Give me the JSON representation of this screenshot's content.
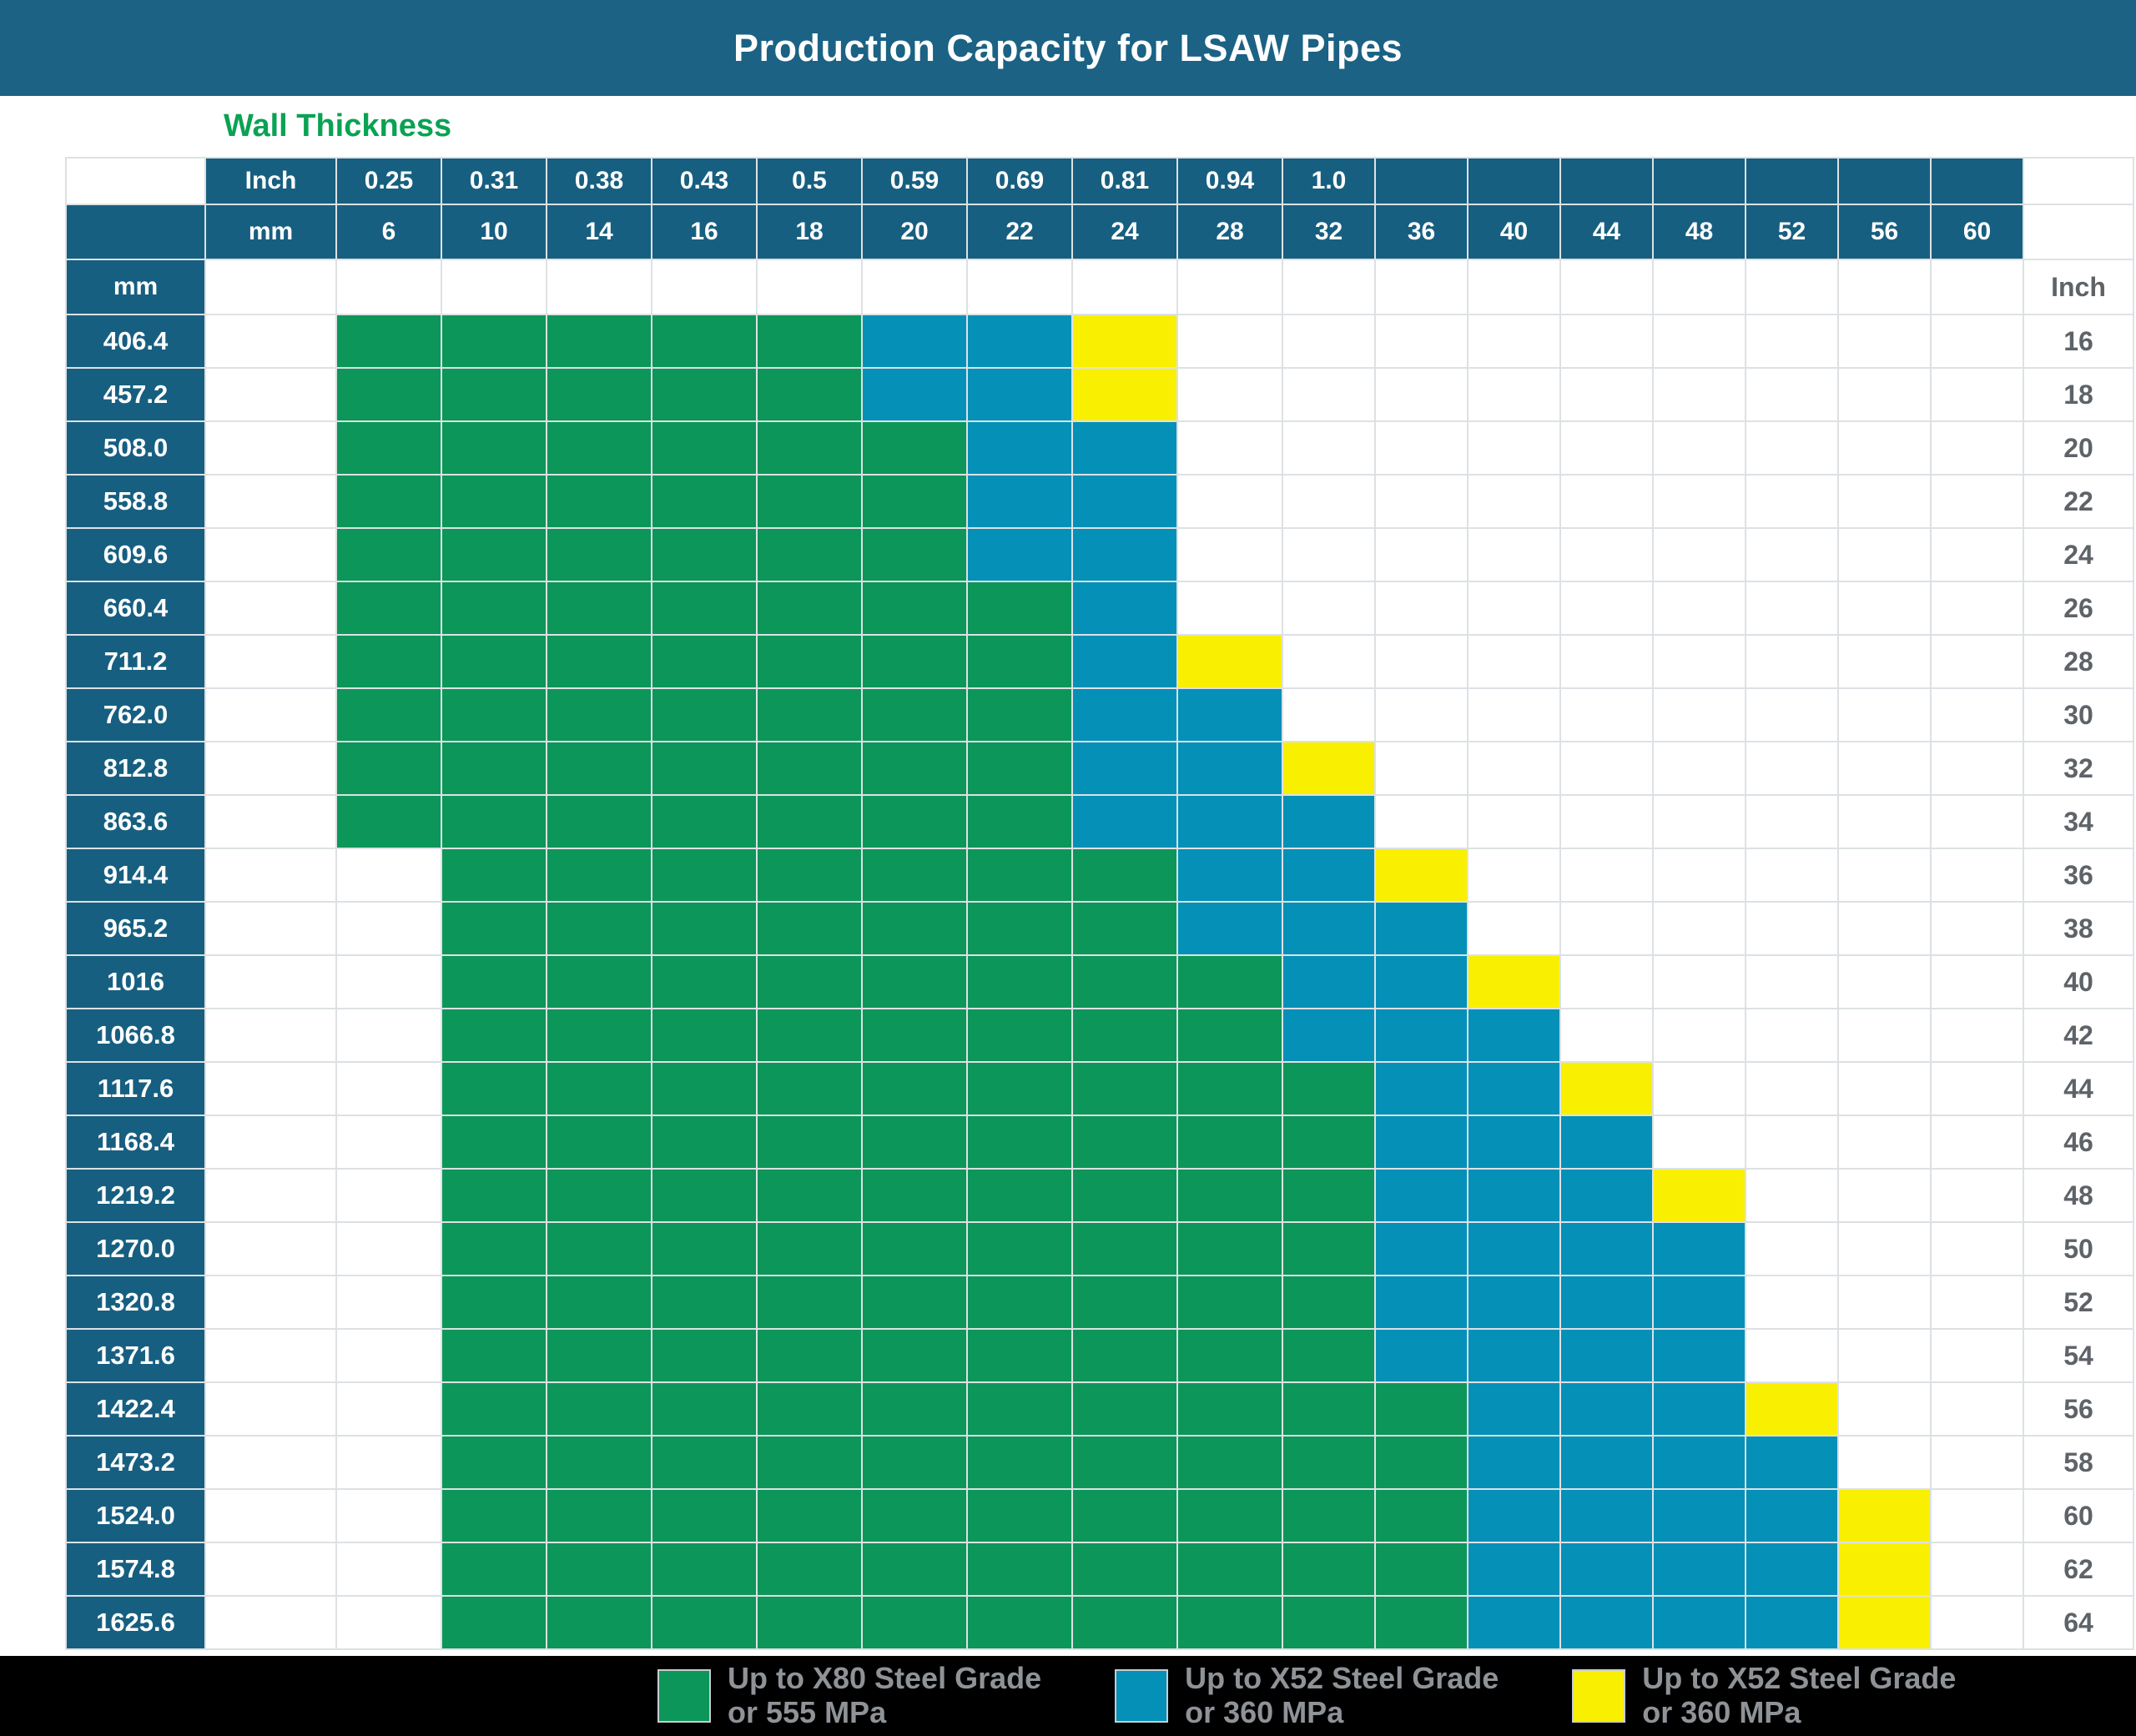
{
  "title": "Production Capacity for LSAW Pipes",
  "wall_thickness_label": "Wall Thickness",
  "units": {
    "inch": "Inch",
    "mm": "mm"
  },
  "wall_thickness_columns": {
    "inch": [
      "0.25",
      "0.31",
      "0.38",
      "0.43",
      "0.5",
      "0.59",
      "0.69",
      "0.81",
      "0.94",
      "1.0"
    ],
    "mm": [
      "6",
      "10",
      "14",
      "16",
      "18",
      "20",
      "22",
      "24",
      "28",
      "32",
      "36",
      "40",
      "44",
      "48",
      "52",
      "56",
      "60"
    ]
  },
  "rows": [
    {
      "mm": "406.4",
      "inch": "16",
      "cells": "GGGGGBBY........."
    },
    {
      "mm": "457.2",
      "inch": "18",
      "cells": "GGGGGBBY........."
    },
    {
      "mm": "508.0",
      "inch": "20",
      "cells": "GGGGGGBB........."
    },
    {
      "mm": "558.8",
      "inch": "22",
      "cells": "GGGGGGBB........."
    },
    {
      "mm": "609.6",
      "inch": "24",
      "cells": "GGGGGGBB........."
    },
    {
      "mm": "660.4",
      "inch": "26",
      "cells": "GGGGGGGB........."
    },
    {
      "mm": "711.2",
      "inch": "28",
      "cells": "GGGGGGGBY........"
    },
    {
      "mm": "762.0",
      "inch": "30",
      "cells": "GGGGGGGBB........"
    },
    {
      "mm": "812.8",
      "inch": "32",
      "cells": "GGGGGGGBBY......."
    },
    {
      "mm": "863.6",
      "inch": "34",
      "cells": "GGGGGGGBBB......."
    },
    {
      "mm": "914.4",
      "inch": "36",
      "cells": ".GGGGGGGBBY......"
    },
    {
      "mm": "965.2",
      "inch": "38",
      "cells": ".GGGGGGGBBB......"
    },
    {
      "mm": "1016",
      "inch": "40",
      "cells": ".GGGGGGGGBBY....."
    },
    {
      "mm": "1066.8",
      "inch": "42",
      "cells": ".GGGGGGGGBBB....."
    },
    {
      "mm": "1117.6",
      "inch": "44",
      "cells": ".GGGGGGGGGBBY...."
    },
    {
      "mm": "1168.4",
      "inch": "46",
      "cells": ".GGGGGGGGGBBB...."
    },
    {
      "mm": "1219.2",
      "inch": "48",
      "cells": ".GGGGGGGGGBBBY..."
    },
    {
      "mm": "1270.0",
      "inch": "50",
      "cells": ".GGGGGGGGGBBBB..."
    },
    {
      "mm": "1320.8",
      "inch": "52",
      "cells": ".GGGGGGGGGBBBB..."
    },
    {
      "mm": "1371.6",
      "inch": "54",
      "cells": ".GGGGGGGGGBBBB..."
    },
    {
      "mm": "1422.4",
      "inch": "56",
      "cells": ".GGGGGGGGGGBBBY.."
    },
    {
      "mm": "1473.2",
      "inch": "58",
      "cells": ".GGGGGGGGGGBBBB.."
    },
    {
      "mm": "1524.0",
      "inch": "60",
      "cells": ".GGGGGGGGGGBBBBY."
    },
    {
      "mm": "1574.8",
      "inch": "62",
      "cells": ".GGGGGGGGGGBBBBY."
    },
    {
      "mm": "1625.6",
      "inch": "64",
      "cells": ".GGGGGGGGGGBBBBY."
    }
  ],
  "legend": [
    {
      "key": "G",
      "color": "#0D9659",
      "line1": "Up to X80 Steel Grade",
      "line2": "or 555 MPa"
    },
    {
      "key": "B",
      "color": "#0590B8",
      "line1": "Up to X52 Steel Grade",
      "line2": "or 360 MPa"
    },
    {
      "key": "Y",
      "color": "#F8F000",
      "line1": "Up to X52 Steel Grade",
      "line2": "or 360 MPa"
    }
  ],
  "colors": {
    "green_cell": "#0D9659",
    "blue_cell": "#0590B8",
    "yellow_cell": "#F8F000",
    "header_cell": "#175F80",
    "title_bar": "#1B6284",
    "wall_thickness_text": "#0AA253",
    "inch_label_text": "#5E6368",
    "legend_text": "#8F9397",
    "legend_bar": "#000000"
  },
  "chart_data": {
    "type": "heatmap",
    "title": "Production Capacity for LSAW Pipes",
    "x_axis_label": "Wall Thickness",
    "x_units": [
      "Inch",
      "mm"
    ],
    "x_inch": [
      0.25,
      0.31,
      0.38,
      0.43,
      0.5,
      0.59,
      0.69,
      0.81,
      0.94,
      1.0
    ],
    "x_mm": [
      6,
      10,
      14,
      16,
      18,
      20,
      22,
      24,
      28,
      32,
      36,
      40,
      44,
      48,
      52,
      56,
      60
    ],
    "y_units": [
      "mm",
      "Inch"
    ],
    "y_mm": [
      406.4,
      457.2,
      508.0,
      558.8,
      609.6,
      660.4,
      711.2,
      762.0,
      812.8,
      863.6,
      914.4,
      965.2,
      1016,
      1066.8,
      1117.6,
      1168.4,
      1219.2,
      1270.0,
      1320.8,
      1371.6,
      1422.4,
      1473.2,
      1524.0,
      1574.8,
      1625.6
    ],
    "y_inch": [
      16,
      18,
      20,
      22,
      24,
      26,
      28,
      30,
      32,
      34,
      36,
      38,
      40,
      42,
      44,
      46,
      48,
      50,
      52,
      54,
      56,
      58,
      60,
      62,
      64
    ],
    "cell_codes": {
      "G": "Up to X80 Steel Grade or 555 MPa",
      "B": "Up to X52 Steel Grade or 360 MPa",
      "Y": "Up to X52 Steel Grade or 360 MPa",
      ".": "blank"
    },
    "grid": [
      "GGGGGBBY.........",
      "GGGGGBBY.........",
      "GGGGGGBB.........",
      "GGGGGGBB.........",
      "GGGGGGBB.........",
      "GGGGGGGB.........",
      "GGGGGGGBY........",
      "GGGGGGGBB........",
      "GGGGGGGBBY.......",
      "GGGGGGGBBB.......",
      ".GGGGGGGBBY......",
      ".GGGGGGGBBB......",
      ".GGGGGGGGBBY.....",
      ".GGGGGGGGBBB.....",
      ".GGGGGGGGGBBY....",
      ".GGGGGGGGGBBB....",
      ".GGGGGGGGGBBBY...",
      ".GGGGGGGGGBBBB...",
      ".GGGGGGGGGBBBB...",
      ".GGGGGGGGGBBBB...",
      ".GGGGGGGGGGBBBY..",
      ".GGGGGGGGGGBBBB..",
      ".GGGGGGGGGGBBBBY.",
      ".GGGGGGGGGGBBBBY.",
      ".GGGGGGGGGGBBBBY."
    ],
    "grid_on": true,
    "legend_position": "bottom"
  }
}
